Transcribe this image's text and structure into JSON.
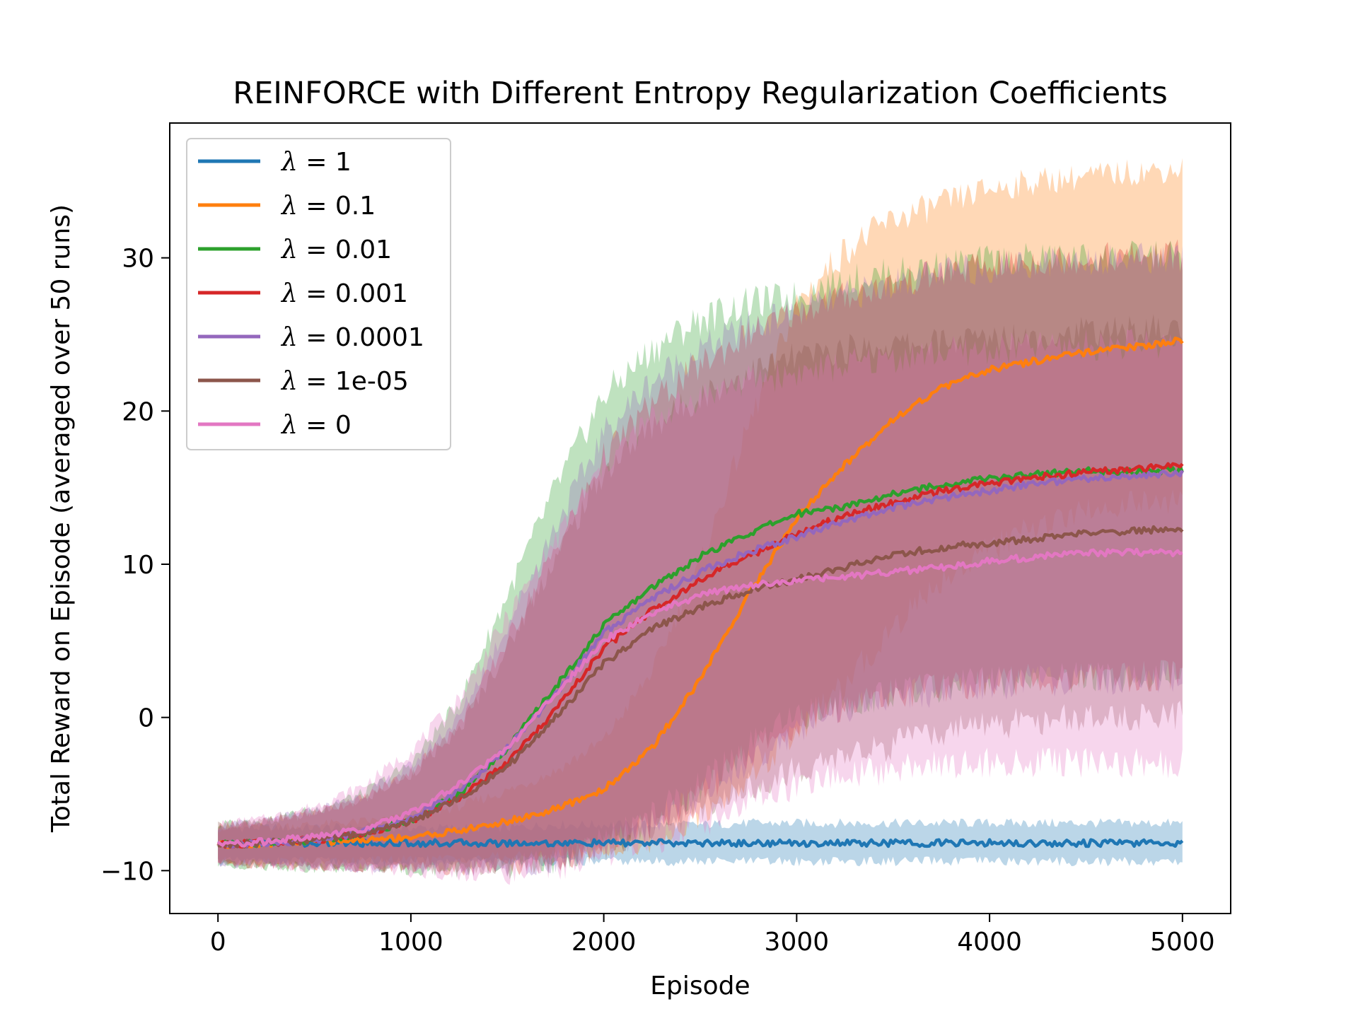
{
  "chart_data": {
    "type": "line",
    "title": "REINFORCE with Different Entropy Regularization Coefficients",
    "xlabel": "Episode",
    "ylabel": "Total Reward on Episode (averaged over 50 runs)",
    "xlim": [
      -250,
      5250
    ],
    "ylim": [
      -12.8,
      38.8
    ],
    "xticks": [
      0,
      1000,
      2000,
      3000,
      4000,
      5000
    ],
    "yticks": [
      -10,
      0,
      10,
      20,
      30
    ],
    "xtick_labels": [
      "0",
      "1000",
      "2000",
      "3000",
      "4000",
      "5000"
    ],
    "ytick_labels": [
      "−10",
      "0",
      "10",
      "20",
      "30"
    ],
    "grid": false,
    "legend_position": "top-left",
    "x": [
      0,
      250,
      500,
      750,
      1000,
      1250,
      1500,
      1750,
      2000,
      2250,
      2500,
      2750,
      3000,
      3250,
      3500,
      3750,
      4000,
      4250,
      4500,
      4750,
      5000
    ],
    "series": [
      {
        "name": "λ = 1",
        "lambda_symbol": "λ",
        "lambda_value": "1",
        "color": "#1f77b4",
        "values": [
          -8.3,
          -8.2,
          -8.2,
          -8.2,
          -8.2,
          -8.2,
          -8.2,
          -8.2,
          -8.2,
          -8.2,
          -8.2,
          -8.2,
          -8.2,
          -8.2,
          -8.2,
          -8.2,
          -8.2,
          -8.2,
          -8.2,
          -8.2,
          -8.2
        ],
        "upper": [
          -7.2,
          -7.2,
          -7.2,
          -7.2,
          -7.2,
          -7.2,
          -7.2,
          -7.0,
          -7.0,
          -7.0,
          -7.0,
          -6.9,
          -6.9,
          -6.9,
          -6.9,
          -6.9,
          -6.9,
          -6.9,
          -6.9,
          -6.9,
          -6.9
        ],
        "lower": [
          -9.4,
          -9.4,
          -9.4,
          -9.4,
          -9.4,
          -9.4,
          -9.4,
          -9.4,
          -9.4,
          -9.4,
          -9.4,
          -9.4,
          -9.4,
          -9.4,
          -9.4,
          -9.4,
          -9.4,
          -9.4,
          -9.4,
          -9.4,
          -9.4
        ]
      },
      {
        "name": "λ = 0.1",
        "lambda_symbol": "λ",
        "lambda_value": "0.1",
        "color": "#ff7f0e",
        "values": [
          -8.3,
          -8.2,
          -8.1,
          -8.0,
          -7.8,
          -7.4,
          -6.8,
          -6.0,
          -4.7,
          -2.0,
          2.5,
          8.0,
          13.0,
          16.5,
          19.5,
          21.5,
          22.7,
          23.3,
          23.8,
          24.2,
          24.6
        ],
        "upper": [
          -7.2,
          -7.1,
          -7.0,
          -6.8,
          -6.5,
          -5.8,
          -4.8,
          -3.5,
          -1.5,
          3.0,
          10.0,
          19.0,
          27.0,
          30.5,
          32.5,
          33.5,
          34.5,
          35.0,
          35.3,
          35.6,
          35.8
        ],
        "lower": [
          -9.4,
          -9.4,
          -9.4,
          -9.4,
          -9.3,
          -9.2,
          -9.1,
          -9.0,
          -8.8,
          -8.3,
          -6.5,
          -4.0,
          -1.0,
          2.0,
          6.0,
          9.0,
          11.0,
          12.5,
          13.5,
          14.0,
          14.0
        ]
      },
      {
        "name": "λ = 0.01",
        "lambda_symbol": "λ",
        "lambda_value": "0.01",
        "color": "#2ca02c",
        "values": [
          -8.3,
          -8.2,
          -8.0,
          -7.6,
          -6.7,
          -5.0,
          -2.0,
          2.0,
          6.0,
          8.5,
          10.5,
          12.0,
          13.3,
          13.8,
          14.6,
          15.2,
          15.6,
          15.9,
          16.1,
          16.0,
          16.2
        ],
        "upper": [
          -7.0,
          -6.7,
          -6.0,
          -5.0,
          -3.0,
          1.0,
          8.0,
          15.0,
          21.0,
          24.0,
          26.0,
          27.0,
          27.5,
          28.5,
          29.0,
          29.5,
          29.8,
          30.0,
          30.0,
          30.1,
          30.2
        ],
        "lower": [
          -9.6,
          -9.7,
          -9.8,
          -9.8,
          -9.9,
          -9.9,
          -9.8,
          -9.3,
          -8.2,
          -6.5,
          -4.5,
          -2.0,
          0.0,
          1.0,
          1.5,
          2.0,
          2.3,
          2.5,
          2.6,
          2.7,
          2.8
        ]
      },
      {
        "name": "λ = 0.001",
        "lambda_symbol": "λ",
        "lambda_value": "0.001",
        "color": "#d62728",
        "values": [
          -8.3,
          -8.2,
          -8.0,
          -7.6,
          -6.8,
          -5.2,
          -3.0,
          0.5,
          4.5,
          7.0,
          9.0,
          10.5,
          12.0,
          13.2,
          14.0,
          14.8,
          15.3,
          15.7,
          16.0,
          16.2,
          16.5
        ],
        "upper": [
          -7.1,
          -6.8,
          -6.2,
          -5.3,
          -3.5,
          -0.5,
          5.0,
          11.0,
          17.0,
          20.5,
          23.0,
          25.0,
          26.5,
          27.5,
          28.3,
          29.0,
          29.5,
          29.8,
          30.0,
          30.1,
          30.2
        ],
        "lower": [
          -9.5,
          -9.6,
          -9.7,
          -9.8,
          -9.8,
          -9.8,
          -9.7,
          -9.3,
          -8.3,
          -7.0,
          -5.0,
          -2.5,
          -0.5,
          0.8,
          1.5,
          2.0,
          2.3,
          2.5,
          2.6,
          2.7,
          2.8
        ]
      },
      {
        "name": "λ = 0.0001",
        "lambda_symbol": "λ",
        "lambda_value": "0.0001",
        "color": "#9467bd",
        "values": [
          -8.3,
          -8.2,
          -8.0,
          -7.5,
          -6.6,
          -4.8,
          -2.0,
          1.5,
          5.5,
          7.8,
          9.5,
          10.8,
          11.8,
          12.8,
          13.7,
          14.3,
          14.8,
          15.3,
          15.6,
          15.8,
          16.0
        ],
        "upper": [
          -7.1,
          -6.8,
          -6.1,
          -5.1,
          -3.2,
          0.0,
          6.0,
          12.5,
          18.5,
          22.0,
          24.0,
          25.5,
          26.5,
          27.5,
          28.3,
          29.0,
          29.4,
          29.7,
          29.9,
          30.0,
          30.0
        ],
        "lower": [
          -9.5,
          -9.6,
          -9.7,
          -9.8,
          -9.8,
          -9.9,
          -9.8,
          -9.4,
          -8.5,
          -7.0,
          -5.0,
          -2.8,
          -0.8,
          0.5,
          1.3,
          1.8,
          2.1,
          2.3,
          2.4,
          2.5,
          2.5
        ]
      },
      {
        "name": "λ = 1e-05",
        "lambda_symbol": "λ",
        "lambda_value": "1e-05",
        "color": "#8c564b",
        "values": [
          -8.3,
          -8.2,
          -8.0,
          -7.6,
          -6.8,
          -5.3,
          -3.2,
          0.0,
          3.5,
          5.8,
          7.2,
          8.3,
          9.0,
          9.8,
          10.6,
          11.1,
          11.4,
          11.7,
          12.0,
          12.2,
          12.3
        ],
        "upper": [
          -7.1,
          -6.8,
          -6.2,
          -5.4,
          -3.7,
          -0.8,
          4.5,
          10.5,
          16.0,
          19.0,
          21.0,
          22.5,
          23.5,
          24.0,
          24.3,
          24.5,
          24.8,
          25.0,
          25.2,
          25.3,
          25.4
        ],
        "lower": [
          -9.5,
          -9.6,
          -9.7,
          -9.8,
          -9.8,
          -9.8,
          -9.7,
          -9.3,
          -8.5,
          -7.3,
          -6.0,
          -4.5,
          -3.5,
          -2.5,
          -1.8,
          -1.0,
          -0.5,
          -0.2,
          0.0,
          0.0,
          0.2
        ]
      },
      {
        "name": "λ = 0",
        "lambda_symbol": "λ",
        "lambda_value": "0",
        "color": "#e377c2",
        "values": [
          -8.3,
          -8.1,
          -7.8,
          -7.3,
          -6.2,
          -4.4,
          -2.0,
          1.5,
          5.0,
          6.8,
          8.0,
          8.6,
          8.9,
          9.2,
          9.5,
          9.8,
          10.2,
          10.5,
          10.7,
          10.8,
          10.7
        ],
        "upper": [
          -7.0,
          -6.6,
          -5.8,
          -4.5,
          -2.2,
          1.2,
          6.5,
          11.5,
          16.5,
          19.5,
          21.0,
          22.0,
          22.5,
          23.0,
          23.5,
          23.8,
          24.0,
          24.2,
          24.3,
          24.4,
          24.5
        ],
        "lower": [
          -9.6,
          -9.6,
          -9.8,
          -9.9,
          -10.0,
          -10.1,
          -10.2,
          -9.8,
          -9.0,
          -8.0,
          -7.0,
          -5.5,
          -4.5,
          -3.8,
          -3.3,
          -3.0,
          -2.9,
          -2.9,
          -2.9,
          -2.9,
          -3.0
        ]
      }
    ]
  }
}
